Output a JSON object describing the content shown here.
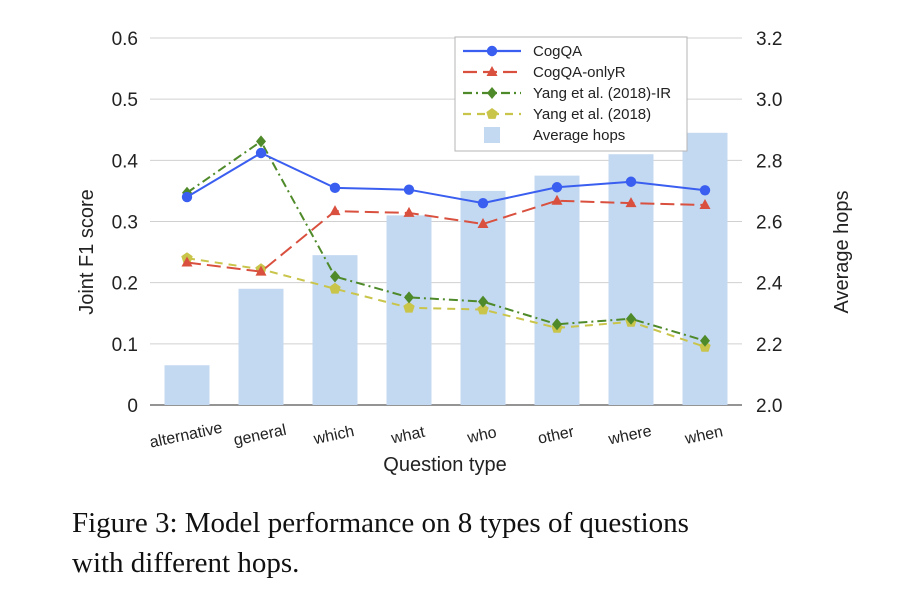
{
  "chart_data": {
    "type": "bar+line",
    "categories": [
      "alternative",
      "general",
      "which",
      "what",
      "who",
      "other",
      "where",
      "when"
    ],
    "xlabel": "Question type",
    "ylabel_left": "Joint F1 score",
    "ylabel_right": "Average hops",
    "ylim_left": [
      0,
      0.6
    ],
    "ylim_right": [
      2.0,
      3.2
    ],
    "yticks_left": [
      "0",
      "0.1",
      "0.2",
      "0.3",
      "0.4",
      "0.5",
      "0.6"
    ],
    "yticks_right": [
      "2.0",
      "2.2",
      "2.4",
      "2.6",
      "2.8",
      "3.0",
      "3.2"
    ],
    "grid": true,
    "legend_position": "top-right",
    "bars": {
      "name": "Average hops",
      "axis": "right",
      "color": "#c3d9f1",
      "values": [
        2.13,
        2.38,
        2.49,
        2.62,
        2.7,
        2.75,
        2.82,
        2.89
      ]
    },
    "series": [
      {
        "name": "CogQA",
        "axis": "left",
        "color": "#3a5ef0",
        "marker": "circle",
        "dash": "solid",
        "values": [
          0.34,
          0.412,
          0.355,
          0.352,
          0.33,
          0.356,
          0.365,
          0.351
        ]
      },
      {
        "name": "CogQA-onlyR",
        "axis": "left",
        "color": "#d9503f",
        "marker": "triangle",
        "dash": "long",
        "values": [
          0.233,
          0.218,
          0.317,
          0.314,
          0.296,
          0.334,
          0.33,
          0.327
        ]
      },
      {
        "name": "Yang et al. (2018)-IR",
        "axis": "left",
        "color": "#4f8a2a",
        "marker": "diamond",
        "dash": "dashdot",
        "values": [
          0.347,
          0.431,
          0.21,
          0.176,
          0.169,
          0.132,
          0.141,
          0.105
        ]
      },
      {
        "name": "Yang et al. (2018)",
        "axis": "left",
        "color": "#c9c44a",
        "marker": "pentagon",
        "dash": "dashed",
        "values": [
          0.24,
          0.222,
          0.19,
          0.159,
          0.156,
          0.126,
          0.136,
          0.095
        ]
      }
    ]
  },
  "caption": {
    "line1": "Figure 3: Model performance on 8 types of questions",
    "line2": "with different hops."
  }
}
